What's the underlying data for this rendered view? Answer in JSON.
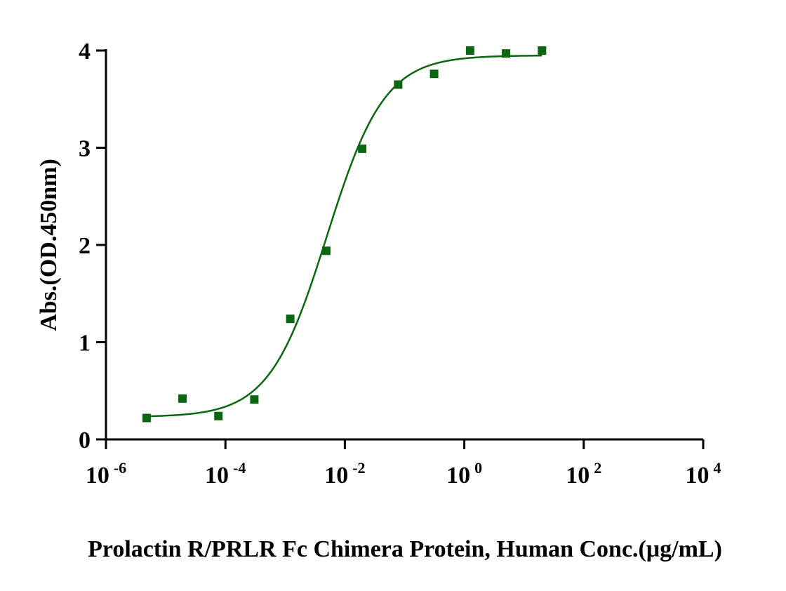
{
  "chart_data": {
    "type": "scatter",
    "xlabel": "Prolactin R/PRLR Fc Chimera Protein, Human Conc.(μg/mL)",
    "ylabel": "Abs.(OD.450nm)",
    "x_scale": "log",
    "xlim": [
      1e-06,
      10000
    ],
    "ylim": [
      0,
      4
    ],
    "x_ticks": [
      {
        "value": 1e-06,
        "base": "10",
        "exp": "-6"
      },
      {
        "value": 0.0001,
        "base": "10",
        "exp": "-4"
      },
      {
        "value": 0.01,
        "base": "10",
        "exp": "-2"
      },
      {
        "value": 1,
        "base": "10",
        "exp": "0"
      },
      {
        "value": 100,
        "base": "10",
        "exp": "2"
      },
      {
        "value": 10000,
        "base": "10",
        "exp": "4"
      }
    ],
    "y_ticks": [
      {
        "value": 0,
        "label": "0"
      },
      {
        "value": 1,
        "label": "1"
      },
      {
        "value": 2,
        "label": "2"
      },
      {
        "value": 3,
        "label": "3"
      },
      {
        "value": 4,
        "label": "4"
      }
    ],
    "grid": false,
    "color": "#0b6611",
    "series": [
      {
        "x": [
          4.8e-06,
          1.91e-05,
          7.63e-05,
          0.000305,
          0.00122,
          0.00488,
          0.0195,
          0.0781,
          0.3125,
          1.25,
          5,
          20
        ],
        "y": [
          0.22,
          0.42,
          0.24,
          0.41,
          1.24,
          1.94,
          2.99,
          3.65,
          3.76,
          4.0,
          3.97,
          4.0
        ]
      }
    ],
    "fit": {
      "type": "4PL",
      "bottom": 0.23,
      "top": 3.95,
      "ec50": 0.005,
      "hill": 0.9,
      "x_range": [
        4.8e-06,
        20
      ]
    }
  }
}
